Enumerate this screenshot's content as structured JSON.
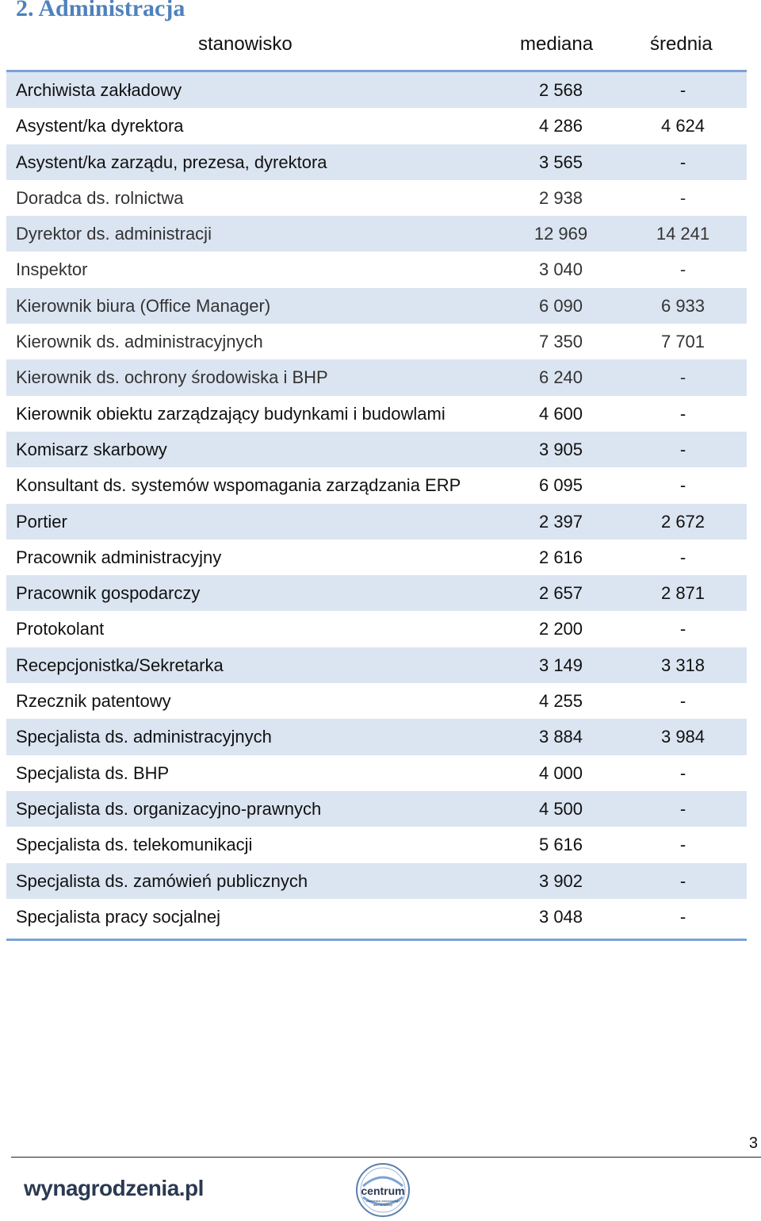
{
  "section_title": "2. Administracja",
  "table": {
    "headers": {
      "position": "stanowisko",
      "median": "mediana",
      "average": "średnia"
    },
    "rows": [
      {
        "position": "Archiwista zakładowy",
        "median": "2 568",
        "average": "-"
      },
      {
        "position": "Asystent/ka dyrektora",
        "median": "4 286",
        "average": "4 624"
      },
      {
        "position": "Asystent/ka zarządu, prezesa, dyrektora",
        "median": "3 565",
        "average": "-"
      },
      {
        "position": "Doradca ds. rolnictwa",
        "median": "2 938",
        "average": "-"
      },
      {
        "position": "Dyrektor ds. administracji",
        "median": "12 969",
        "average": "14 241"
      },
      {
        "position": "Inspektor",
        "median": "3 040",
        "average": "-"
      },
      {
        "position": "Kierownik biura (Office Manager)",
        "median": "6 090",
        "average": "6 933"
      },
      {
        "position": "Kierownik ds. administracyjnych",
        "median": "7 350",
        "average": "7 701"
      },
      {
        "position": "Kierownik ds. ochrony środowiska i BHP",
        "median": "6 240",
        "average": "-"
      },
      {
        "position": "Kierownik obiektu zarządzający budynkami i budowlami",
        "median": "4 600",
        "average": "-"
      },
      {
        "position": "Komisarz skarbowy",
        "median": "3 905",
        "average": "-"
      },
      {
        "position": "Konsultant ds. systemów wspomagania zarządzania ERP",
        "median": "6 095",
        "average": "-"
      },
      {
        "position": "Portier",
        "median": "2 397",
        "average": "2 672"
      },
      {
        "position": "Pracownik administracyjny",
        "median": "2 616",
        "average": "-"
      },
      {
        "position": "Pracownik gospodarczy",
        "median": "2 657",
        "average": "2 871"
      },
      {
        "position": "Protokolant",
        "median": "2 200",
        "average": "-"
      },
      {
        "position": "Recepcjonistka/Sekretarka",
        "median": "3 149",
        "average": "3 318"
      },
      {
        "position": "Rzecznik patentowy",
        "median": "4 255",
        "average": "-"
      },
      {
        "position": "Specjalista ds. administracyjnych",
        "median": "3 884",
        "average": "3 984"
      },
      {
        "position": "Specjalista ds. BHP",
        "median": "4 000",
        "average": "-"
      },
      {
        "position": "Specjalista ds. organizacyjno-prawnych",
        "median": "4 500",
        "average": "-"
      },
      {
        "position": "Specjalista ds. telekomunikacji",
        "median": "5 616",
        "average": "-"
      },
      {
        "position": "Specjalista ds. zamówień publicznych",
        "median": "3 902",
        "average": "-"
      },
      {
        "position": "Specjalista pracy socjalnej",
        "median": "3 048",
        "average": "-"
      }
    ]
  },
  "footer": {
    "page_number": "3",
    "brand": "wynagrodzenia.pl",
    "logo_text": "centrum",
    "logo_subtext": "doradztwa zawodowego dla młodzieży"
  },
  "colors": {
    "heading": "#4f81bd",
    "row_shade": "#dbe5f1",
    "rule": "#7aa2d6"
  }
}
